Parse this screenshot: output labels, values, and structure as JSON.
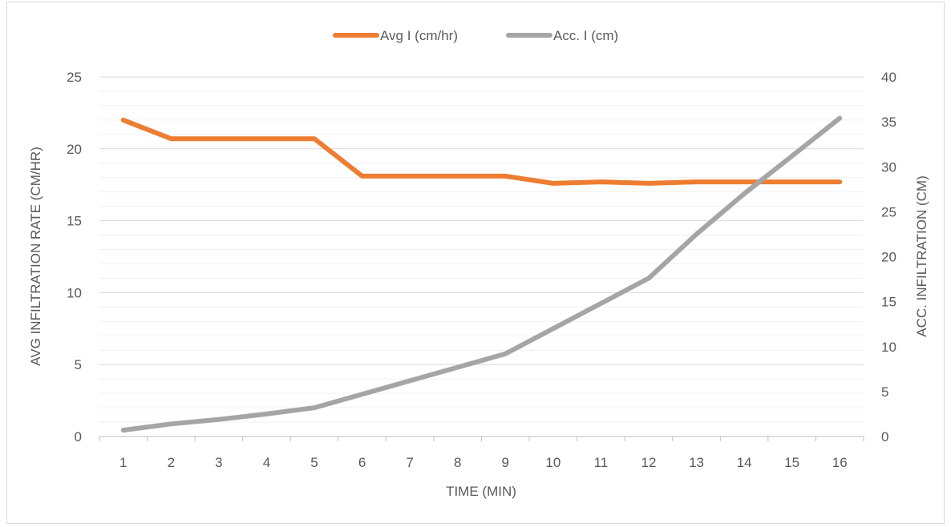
{
  "chart_data": {
    "type": "line",
    "title": "",
    "categories": [
      "1",
      "2",
      "3",
      "4",
      "5",
      "6",
      "7",
      "8",
      "9",
      "10",
      "11",
      "12",
      "13",
      "14",
      "15",
      "16"
    ],
    "xlabel": "TIME (MIN)",
    "ylabel": "AVG INFILTRATION RATE (CM/HR)",
    "y2label": "ACC. INFILTRATION (CM)",
    "ylim": [
      0,
      25
    ],
    "y2lim": [
      0,
      40
    ],
    "yticks": [
      0,
      5,
      10,
      15,
      20,
      25
    ],
    "y2ticks": [
      0,
      5,
      10,
      15,
      20,
      25,
      30,
      35,
      40
    ],
    "grid": true,
    "legend_position": "top-center",
    "series": [
      {
        "name": "Avg I (cm/hr)",
        "axis": "left",
        "color": "#ED7D31",
        "values": [
          22.0,
          20.7,
          20.7,
          20.7,
          20.7,
          18.1,
          18.1,
          18.1,
          18.1,
          17.6,
          17.7,
          17.6,
          17.7,
          17.7,
          17.7,
          17.7
        ]
      },
      {
        "name": "Acc. I (cm)",
        "axis": "right",
        "color": "#A5A5A5",
        "values": [
          0.7,
          1.4,
          1.9,
          2.5,
          3.2,
          4.7,
          6.2,
          7.7,
          9.2,
          12.0,
          14.8,
          17.6,
          22.5,
          27.0,
          31.2,
          35.4
        ]
      }
    ]
  }
}
